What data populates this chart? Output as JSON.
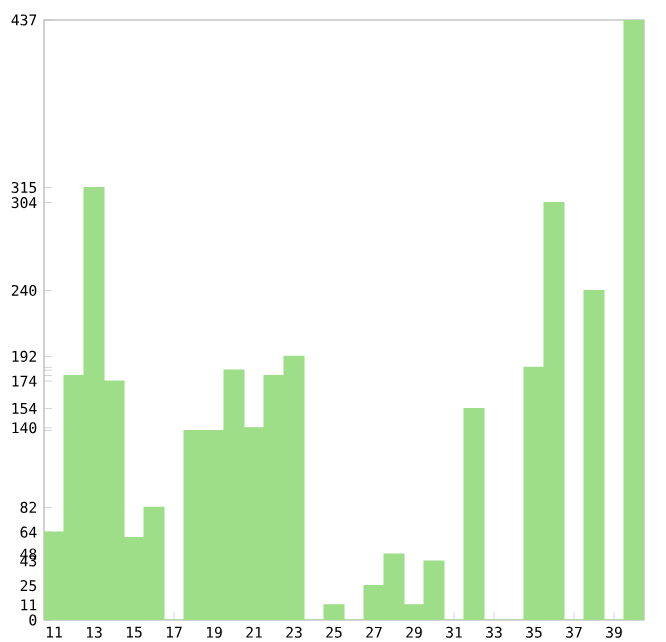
{
  "chart_data": {
    "type": "bar",
    "categories": [
      "11",
      null,
      "13",
      null,
      "15",
      null,
      "17",
      null,
      "19",
      null,
      "21",
      null,
      "23",
      null,
      "25",
      null,
      "27",
      null,
      "29",
      null,
      "31",
      null,
      "33",
      null,
      "35",
      null,
      "37",
      null,
      "39",
      null
    ],
    "values": [
      64,
      178,
      315,
      174,
      60,
      82,
      0,
      138,
      138,
      182,
      140,
      178,
      192,
      0,
      11,
      0,
      25,
      48,
      11,
      43,
      0,
      154,
      0,
      0,
      184,
      304,
      0,
      240,
      0,
      437
    ],
    "color": "#9ede88",
    "ylim": [
      0,
      437
    ],
    "yticks": [
      0,
      11,
      25,
      43,
      48,
      {
        "value": 60,
        "label": null
      },
      64,
      82,
      {
        "value": 138,
        "label": null
      },
      140,
      154,
      174,
      {
        "value": 178,
        "label": null
      },
      {
        "value": 182,
        "label": null
      },
      {
        "value": 184,
        "label": null
      },
      192,
      240,
      304,
      315,
      437
    ],
    "grid": false
  }
}
